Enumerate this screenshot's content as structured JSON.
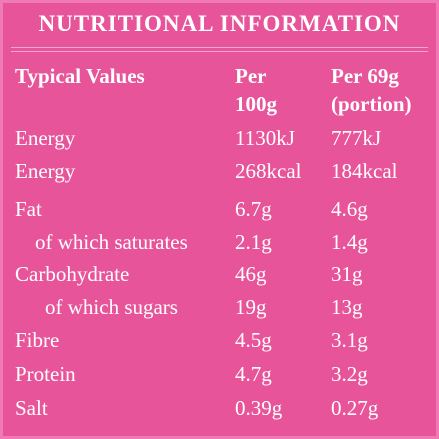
{
  "header": {
    "title": "NUTRITIONAL INFORMATION"
  },
  "table": {
    "columns": [
      [
        "Typical Values"
      ],
      [
        "Per",
        "100g"
      ],
      [
        "Per 69g",
        "(portion)"
      ]
    ],
    "rows": [
      [
        "Energy",
        "1130kJ",
        "777kJ"
      ],
      [
        "Energy",
        "268kcal",
        "184kcal"
      ],
      [
        "Fat",
        "6.7g",
        "4.6g"
      ],
      [
        "of which saturates",
        "2.1g",
        "1.4g"
      ],
      [
        "Carbohydrate",
        "46g",
        "31g"
      ],
      [
        "of which sugars",
        "19g",
        "13g"
      ],
      [
        "Fibre",
        "4.5g",
        "3.1g"
      ],
      [
        "Protein",
        "4.7g",
        "3.2g"
      ],
      [
        "Salt",
        "0.39g",
        "0.27g"
      ]
    ]
  }
}
